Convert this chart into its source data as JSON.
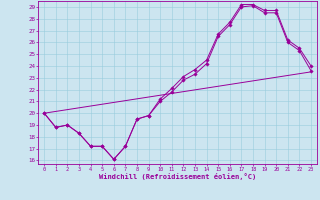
{
  "xlabel": "Windchill (Refroidissement éolien,°C)",
  "bg_color": "#cce5f0",
  "line_color": "#990099",
  "xlim": [
    -0.5,
    23.5
  ],
  "ylim": [
    15.7,
    29.5
  ],
  "yticks": [
    16,
    17,
    18,
    19,
    20,
    21,
    22,
    23,
    24,
    25,
    26,
    27,
    28,
    29
  ],
  "xticks": [
    0,
    1,
    2,
    3,
    4,
    5,
    6,
    7,
    8,
    9,
    10,
    11,
    12,
    13,
    14,
    15,
    16,
    17,
    18,
    19,
    20,
    21,
    22,
    23
  ],
  "series1_x": [
    0,
    1,
    2,
    3,
    4,
    5,
    6,
    7,
    8,
    9,
    10,
    11,
    12,
    13,
    14,
    15,
    16,
    17,
    18,
    19,
    20,
    21,
    22,
    23
  ],
  "series1_y": [
    20.0,
    18.8,
    19.0,
    18.3,
    17.2,
    17.2,
    16.1,
    17.2,
    19.5,
    19.8,
    21.0,
    21.8,
    22.8,
    23.3,
    24.2,
    26.5,
    27.5,
    29.0,
    29.1,
    28.5,
    28.5,
    26.0,
    25.3,
    23.6
  ],
  "series2_x": [
    0,
    1,
    2,
    3,
    4,
    5,
    6,
    7,
    8,
    9,
    10,
    11,
    12,
    13,
    14,
    15,
    16,
    17,
    18,
    19,
    20,
    21,
    22,
    23
  ],
  "series2_y": [
    20.0,
    18.8,
    19.0,
    18.3,
    17.2,
    17.2,
    16.1,
    17.2,
    19.5,
    19.8,
    21.2,
    22.1,
    23.1,
    23.7,
    24.5,
    26.7,
    27.7,
    29.2,
    29.2,
    28.7,
    28.7,
    26.2,
    25.5,
    24.0
  ],
  "series3_x": [
    0,
    23
  ],
  "series3_y": [
    20.0,
    23.5
  ],
  "grid_color": "#99ccdd",
  "marker": "D",
  "markersize": 1.8,
  "linewidth": 0.7
}
